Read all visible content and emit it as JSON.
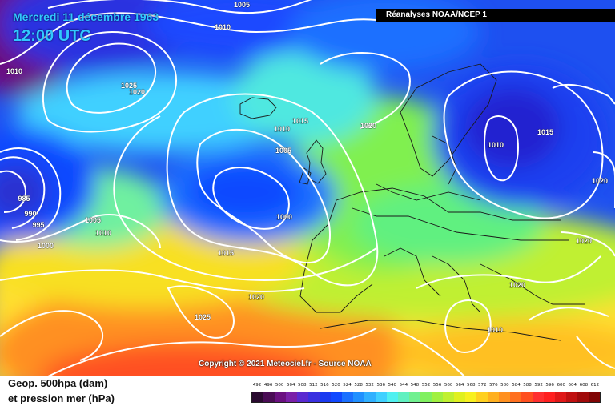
{
  "header": {
    "date": "Mercredi 11 décembre 1963",
    "time": "12:00 UTC",
    "source": "Réanalyses NOAA/NCEP 1"
  },
  "copyright": "Copyright © 2021 Meteociel.fr - Source NOAA",
  "legend": {
    "line1": "Geop. 500hpa (dam)",
    "line2": "et pression mer (hPa)"
  },
  "scale": {
    "labels": [
      "492",
      "496",
      "500",
      "504",
      "508",
      "512",
      "516",
      "520",
      "524",
      "528",
      "532",
      "536",
      "540",
      "544",
      "548",
      "552",
      "556",
      "560",
      "564",
      "568",
      "572",
      "576",
      "580",
      "584",
      "588",
      "592",
      "596",
      "600",
      "604",
      "608",
      "612"
    ],
    "colors": [
      "#2a0a30",
      "#4a0c55",
      "#6a1080",
      "#7a20a8",
      "#5a2ad0",
      "#3a30e0",
      "#1a3af0",
      "#1048ff",
      "#1a70ff",
      "#2090ff",
      "#30b0ff",
      "#40d0ff",
      "#50f0f0",
      "#60f0c0",
      "#70f090",
      "#80f060",
      "#a0f040",
      "#c0f030",
      "#e0f020",
      "#f8f020",
      "#ffd020",
      "#ffb020",
      "#ff9020",
      "#ff7020",
      "#ff5020",
      "#ff3030",
      "#ff2020",
      "#e01818",
      "#c01010",
      "#a00a0a",
      "#800505"
    ]
  },
  "isobar_labels": [
    {
      "t": "1005"
    },
    {
      "t": "1010"
    },
    {
      "t": "1010"
    },
    {
      "t": "1025"
    },
    {
      "t": "1020"
    },
    {
      "t": "1015"
    },
    {
      "t": "1010"
    },
    {
      "t": "1005"
    },
    {
      "t": "1020"
    },
    {
      "t": "1000"
    },
    {
      "t": "1010"
    },
    {
      "t": "1015"
    },
    {
      "t": "1020"
    },
    {
      "t": "1020"
    },
    {
      "t": "985"
    },
    {
      "t": "990"
    },
    {
      "t": "995"
    },
    {
      "t": "1000"
    },
    {
      "t": "1005"
    },
    {
      "t": "1010"
    },
    {
      "t": "1015"
    },
    {
      "t": "1020"
    },
    {
      "t": "1025"
    },
    {
      "t": "1020"
    },
    {
      "t": "1010"
    }
  ]
}
